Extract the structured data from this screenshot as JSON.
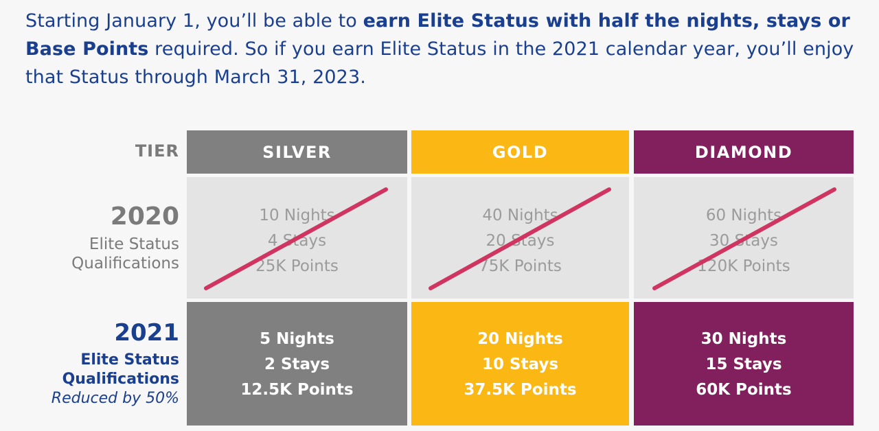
{
  "intro": {
    "part1": "Starting January 1, you’ll be able to ",
    "bold1": "earn Elite Status with half the nights, stays or Base Points",
    "part2": " required. So if you earn Elite Status in the 2021 calendar year, you’ll enjoy that Status through March 31, 2023."
  },
  "labels": {
    "tier": "TIER",
    "year_2020": "2020",
    "sub_2020_line1": "Elite Status",
    "sub_2020_line2": "Qualifications",
    "year_2021": "2021",
    "sub_2021_line1": "Elite Status",
    "sub_2021_line2": "Qualifications",
    "reduced": "Reduced by 50%"
  },
  "tiers": [
    {
      "name": "SILVER",
      "color": "#808080",
      "old": [
        "10 Nights",
        "4 Stays",
        "25K Points"
      ],
      "new": [
        "5 Nights",
        "2 Stays",
        "12.5K Points"
      ]
    },
    {
      "name": "GOLD",
      "color": "#fbb713",
      "old": [
        "40 Nights",
        "20 Stays",
        "75K Points"
      ],
      "new": [
        "20 Nights",
        "10 Stays",
        "37.5K Points"
      ]
    },
    {
      "name": "DIAMOND",
      "color": "#82205d",
      "old": [
        "60 Nights",
        "30 Stays",
        "120K Points"
      ],
      "new": [
        "30 Nights",
        "15 Stays",
        "60K Points"
      ]
    }
  ],
  "strike_color": "#d03562"
}
